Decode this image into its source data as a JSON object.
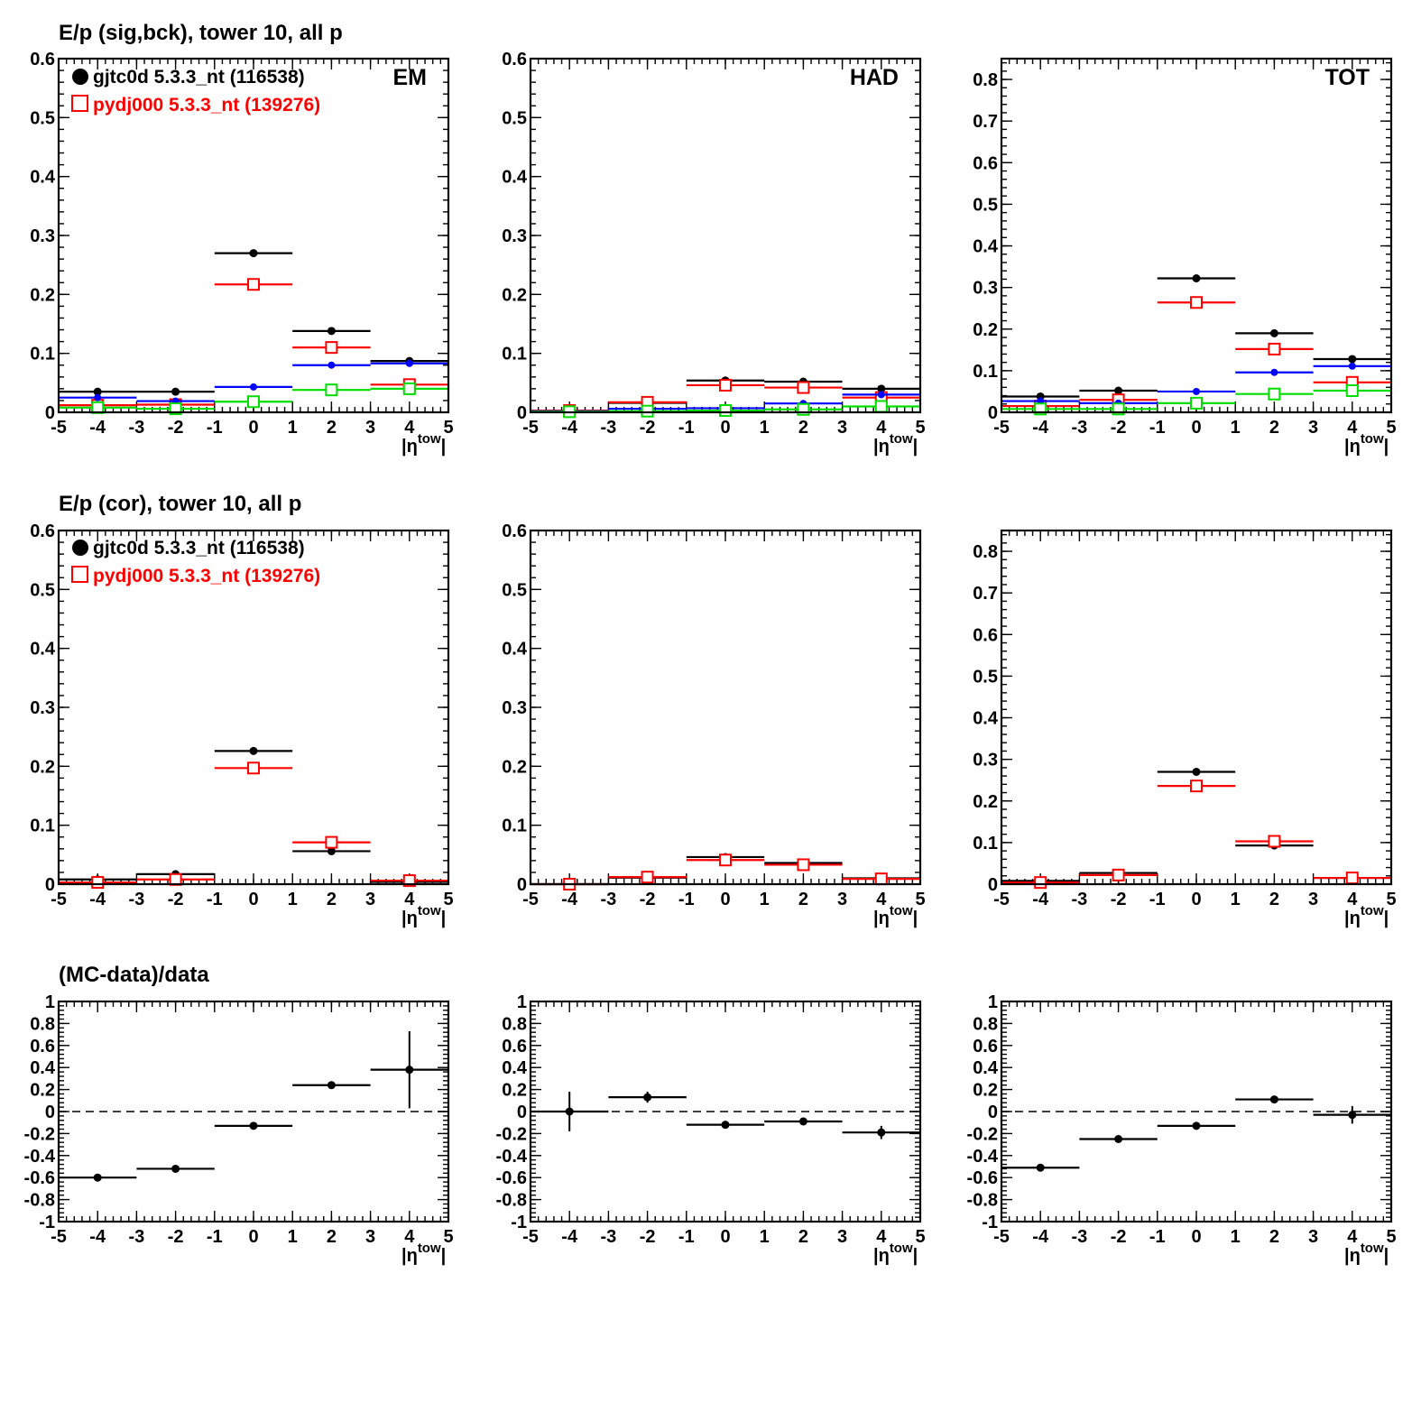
{
  "figure": {
    "row_titles": [
      "E/p (sig,bck), tower 10, all p",
      "E/p (cor), tower 10, all p",
      "(MC-data)/data"
    ],
    "xlabel": "|η",
    "xlabel_sup": "tow",
    "xlabel_end": "|",
    "legend": [
      {
        "label": "gjtc0d 5.3.3_nt (116538)",
        "color": "#000000",
        "marker": "filled-circle"
      },
      {
        "label": "pydj000 5.3.3_nt (139276)",
        "color": "#ff0000",
        "marker": "open-square"
      }
    ]
  },
  "chart_data": [
    {
      "type": "scatter",
      "panel": "EM",
      "row": 0,
      "col": 0,
      "xlim": [
        -5,
        5
      ],
      "ylim": [
        0,
        0.6
      ],
      "xticks": [
        "-5",
        "-4",
        "-3",
        "-2",
        "-1",
        "0",
        "1",
        "2",
        "3",
        "4",
        "5"
      ],
      "yticks": [
        "0",
        "0.1",
        "0.2",
        "0.3",
        "0.4",
        "0.5",
        "0.6"
      ],
      "tag": "EM",
      "x": [
        -4,
        -2,
        0,
        2,
        4
      ],
      "bin_halfwidth": 1,
      "series": [
        {
          "color": "#000000",
          "marker": "filled-circle",
          "values": [
            0.035,
            0.035,
            0.27,
            0.138,
            0.087
          ]
        },
        {
          "color": "#ff0000",
          "marker": "open-square",
          "values": [
            0.012,
            0.013,
            0.217,
            0.11,
            0.047
          ]
        },
        {
          "color": "#0000ff",
          "marker": "small-dot",
          "values": [
            0.025,
            0.019,
            0.043,
            0.08,
            0.083
          ]
        },
        {
          "color": "#00dd00",
          "marker": "open-square",
          "values": [
            0.008,
            0.006,
            0.018,
            0.038,
            0.04
          ]
        }
      ]
    },
    {
      "type": "scatter",
      "panel": "HAD",
      "row": 0,
      "col": 1,
      "xlim": [
        -5,
        5
      ],
      "ylim": [
        0,
        0.6
      ],
      "xticks": [
        "-5",
        "-4",
        "-3",
        "-2",
        "-1",
        "0",
        "1",
        "2",
        "3",
        "4",
        "5"
      ],
      "yticks": [
        "0",
        "0.1",
        "0.2",
        "0.3",
        "0.4",
        "0.5",
        "0.6"
      ],
      "tag": "HAD",
      "x": [
        -4,
        -2,
        0,
        2,
        4
      ],
      "bin_halfwidth": 1,
      "series": [
        {
          "color": "#000000",
          "marker": "filled-circle",
          "values": [
            0.003,
            0.016,
            0.054,
            0.052,
            0.04
          ]
        },
        {
          "color": "#ff0000",
          "marker": "open-square",
          "values": [
            0.003,
            0.017,
            0.046,
            0.042,
            0.025
          ]
        },
        {
          "color": "#0000ff",
          "marker": "small-dot",
          "values": [
            0.002,
            0.006,
            0.007,
            0.015,
            0.03
          ]
        },
        {
          "color": "#00dd00",
          "marker": "open-square",
          "values": [
            0.001,
            0.002,
            0.003,
            0.005,
            0.01
          ]
        }
      ]
    },
    {
      "type": "scatter",
      "panel": "TOT",
      "row": 0,
      "col": 2,
      "xlim": [
        -5,
        5
      ],
      "ylim": [
        0,
        0.85
      ],
      "xticks": [
        "-5",
        "-4",
        "-3",
        "-2",
        "-1",
        "0",
        "1",
        "2",
        "3",
        "4",
        "5"
      ],
      "yticks": [
        "0",
        "0.1",
        "0.2",
        "0.3",
        "0.4",
        "0.5",
        "0.6",
        "0.7",
        "0.8"
      ],
      "tag": "TOT",
      "x": [
        -4,
        -2,
        0,
        2,
        4
      ],
      "bin_halfwidth": 1,
      "series": [
        {
          "color": "#000000",
          "marker": "filled-circle",
          "values": [
            0.038,
            0.052,
            0.322,
            0.19,
            0.128
          ]
        },
        {
          "color": "#ff0000",
          "marker": "open-square",
          "values": [
            0.015,
            0.03,
            0.264,
            0.152,
            0.072
          ]
        },
        {
          "color": "#0000ff",
          "marker": "small-dot",
          "values": [
            0.027,
            0.022,
            0.05,
            0.096,
            0.111
          ]
        },
        {
          "color": "#00dd00",
          "marker": "open-square",
          "values": [
            0.008,
            0.008,
            0.022,
            0.044,
            0.052
          ]
        }
      ]
    },
    {
      "type": "scatter",
      "panel": "EM-cor",
      "row": 1,
      "col": 0,
      "xlim": [
        -5,
        5
      ],
      "ylim": [
        0,
        0.6
      ],
      "xticks": [
        "-5",
        "-4",
        "-3",
        "-2",
        "-1",
        "0",
        "1",
        "2",
        "3",
        "4",
        "5"
      ],
      "yticks": [
        "0",
        "0.1",
        "0.2",
        "0.3",
        "0.4",
        "0.5",
        "0.6"
      ],
      "x": [
        -4,
        -2,
        0,
        2,
        4
      ],
      "bin_halfwidth": 1,
      "series": [
        {
          "color": "#000000",
          "marker": "filled-circle",
          "values": [
            0.008,
            0.017,
            0.226,
            0.056,
            0.004
          ]
        },
        {
          "color": "#ff0000",
          "marker": "open-square",
          "values": [
            0.003,
            0.008,
            0.197,
            0.071,
            0.006
          ]
        }
      ]
    },
    {
      "type": "scatter",
      "panel": "HAD-cor",
      "row": 1,
      "col": 1,
      "xlim": [
        -5,
        5
      ],
      "ylim": [
        0,
        0.6
      ],
      "xticks": [
        "-5",
        "-4",
        "-3",
        "-2",
        "-1",
        "0",
        "1",
        "2",
        "3",
        "4",
        "5"
      ],
      "yticks": [
        "0",
        "0.1",
        "0.2",
        "0.3",
        "0.4",
        "0.5",
        "0.6"
      ],
      "x": [
        -4,
        -2,
        0,
        2,
        4
      ],
      "bin_halfwidth": 1,
      "series": [
        {
          "color": "#000000",
          "marker": "filled-circle",
          "values": [
            0.0,
            0.011,
            0.046,
            0.036,
            0.01
          ]
        },
        {
          "color": "#ff0000",
          "marker": "open-square",
          "values": [
            0.0,
            0.012,
            0.041,
            0.033,
            0.009
          ]
        }
      ]
    },
    {
      "type": "scatter",
      "panel": "TOT-cor",
      "row": 1,
      "col": 2,
      "xlim": [
        -5,
        5
      ],
      "ylim": [
        0,
        0.85
      ],
      "xticks": [
        "-5",
        "-4",
        "-3",
        "-2",
        "-1",
        "0",
        "1",
        "2",
        "3",
        "4",
        "5"
      ],
      "yticks": [
        "0",
        "0.1",
        "0.2",
        "0.3",
        "0.4",
        "0.5",
        "0.6",
        "0.7",
        "0.8"
      ],
      "x": [
        -4,
        -2,
        0,
        2,
        4
      ],
      "bin_halfwidth": 1,
      "series": [
        {
          "color": "#000000",
          "marker": "filled-circle",
          "values": [
            0.008,
            0.027,
            0.27,
            0.093,
            0.015
          ]
        },
        {
          "color": "#ff0000",
          "marker": "open-square",
          "values": [
            0.004,
            0.022,
            0.236,
            0.103,
            0.015
          ]
        }
      ]
    },
    {
      "type": "scatter",
      "panel": "EM-ratio",
      "row": 2,
      "col": 0,
      "xlim": [
        -5,
        5
      ],
      "ylim": [
        -1,
        1
      ],
      "xticks": [
        "-5",
        "-4",
        "-3",
        "-2",
        "-1",
        "0",
        "1",
        "2",
        "3",
        "4",
        "5"
      ],
      "yticks": [
        "-1",
        "-0.8",
        "-0.6",
        "-0.4",
        "-0.2",
        "0",
        "0.2",
        "0.4",
        "0.6",
        "0.8",
        "1"
      ],
      "reference_line": 0,
      "x": [
        -4,
        -2,
        0,
        2,
        4
      ],
      "bin_halfwidth": 1,
      "series": [
        {
          "color": "#000000",
          "marker": "filled-circle",
          "values": [
            -0.6,
            -0.52,
            -0.13,
            0.24,
            0.38
          ],
          "errors": [
            0.0,
            0.0,
            0.0,
            0.0,
            0.35
          ]
        }
      ]
    },
    {
      "type": "scatter",
      "panel": "HAD-ratio",
      "row": 2,
      "col": 1,
      "xlim": [
        -5,
        5
      ],
      "ylim": [
        -1,
        1
      ],
      "xticks": [
        "-5",
        "-4",
        "-3",
        "-2",
        "-1",
        "0",
        "1",
        "2",
        "3",
        "4",
        "5"
      ],
      "yticks": [
        "-1",
        "-0.8",
        "-0.6",
        "-0.4",
        "-0.2",
        "0",
        "0.2",
        "0.4",
        "0.6",
        "0.8",
        "1"
      ],
      "reference_line": 0,
      "x": [
        -4,
        -2,
        0,
        2,
        4
      ],
      "bin_halfwidth": 1,
      "series": [
        {
          "color": "#000000",
          "marker": "filled-circle",
          "values": [
            0.0,
            0.13,
            -0.12,
            -0.09,
            -0.19
          ],
          "errors": [
            0.18,
            0.05,
            0.0,
            0.0,
            0.06
          ]
        }
      ]
    },
    {
      "type": "scatter",
      "panel": "TOT-ratio",
      "row": 2,
      "col": 2,
      "xlim": [
        -5,
        5
      ],
      "ylim": [
        -1,
        1
      ],
      "xticks": [
        "-5",
        "-4",
        "-3",
        "-2",
        "-1",
        "0",
        "1",
        "2",
        "3",
        "4",
        "5"
      ],
      "yticks": [
        "-1",
        "-0.8",
        "-0.6",
        "-0.4",
        "-0.2",
        "0",
        "0.2",
        "0.4",
        "0.6",
        "0.8",
        "1"
      ],
      "reference_line": 0,
      "x": [
        -4,
        -2,
        0,
        2,
        4
      ],
      "bin_halfwidth": 1,
      "series": [
        {
          "color": "#000000",
          "marker": "filled-circle",
          "values": [
            -0.51,
            -0.25,
            -0.13,
            0.11,
            -0.03
          ],
          "errors": [
            0.0,
            0.0,
            0.0,
            0.0,
            0.08
          ]
        }
      ]
    }
  ]
}
